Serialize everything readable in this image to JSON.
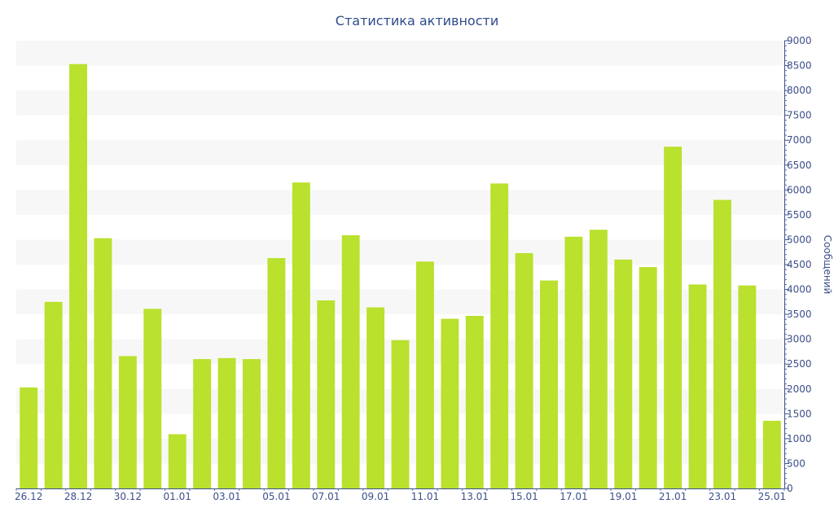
{
  "chart_data": {
    "type": "bar",
    "title": "Статистика активности",
    "ylabel": "Сообщений",
    "xlabel": "",
    "ylim": [
      0,
      9000
    ],
    "y_ticks": [
      0,
      500,
      1000,
      1500,
      2000,
      2500,
      3000,
      3500,
      4000,
      4500,
      5000,
      5500,
      6000,
      6500,
      7000,
      7500,
      8000,
      8500,
      9000
    ],
    "categories": [
      "26.12",
      "27.12",
      "28.12",
      "29.12",
      "30.12",
      "31.12",
      "01.01",
      "02.01",
      "03.01",
      "04.01",
      "05.01",
      "06.01",
      "07.01",
      "08.01",
      "09.01",
      "10.01",
      "11.01",
      "12.01",
      "13.01",
      "14.01",
      "15.01",
      "16.01",
      "17.01",
      "18.01",
      "19.01",
      "20.01",
      "21.01",
      "22.01",
      "23.01",
      "24.01",
      "25.01"
    ],
    "x_tick_labels": [
      "26.12",
      "28.12",
      "30.12",
      "01.01",
      "03.01",
      "05.01",
      "07.01",
      "09.01",
      "11.01",
      "13.01",
      "15.01",
      "17.01",
      "19.01",
      "21.01",
      "23.01",
      "25.01"
    ],
    "values": [
      2030,
      3750,
      8530,
      5030,
      2660,
      3610,
      1090,
      2600,
      2620,
      2600,
      4630,
      6150,
      3780,
      5090,
      3640,
      2980,
      4560,
      3410,
      3470,
      6130,
      4730,
      4180,
      5060,
      5200,
      4600,
      4450,
      6870,
      4100,
      5800,
      4080,
      1360
    ],
    "bar_color": "#b9e12d",
    "band_color": "#f7f7f7",
    "axis_color": "#3c4f8a",
    "grid": true,
    "y_axis_side": "right",
    "legend": "none"
  }
}
